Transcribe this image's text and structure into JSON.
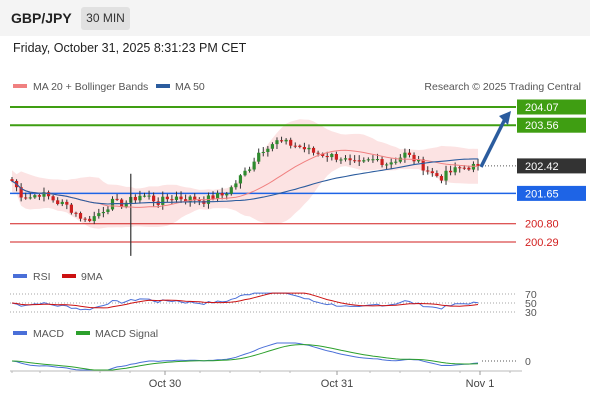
{
  "header": {
    "symbol": "GBP/JPY",
    "timeframe": "30 MIN",
    "timestamp": "Friday, October 31, 2025 8:31:23 PM CET"
  },
  "legend": {
    "ma20": "MA 20 + Bollinger Bands",
    "ma50": "MA 50",
    "credit": "Research © 2025 Trading Central",
    "ma20_color": "#f08080",
    "ma50_color": "#2b5c9e"
  },
  "price_labels": [
    {
      "text": "204.07",
      "value": 204.07,
      "kind": "green"
    },
    {
      "text": "203.56",
      "value": 203.56,
      "kind": "green"
    },
    {
      "text": "202.42",
      "value": 202.42,
      "kind": "dark"
    },
    {
      "text": "201.65",
      "value": 201.65,
      "kind": "blue"
    },
    {
      "text": "200.80",
      "value": 200.8,
      "kind": "red"
    },
    {
      "text": "200.29",
      "value": 200.29,
      "kind": "red"
    }
  ],
  "rsi_panel": {
    "label": "RSI",
    "ma_label": "9MA",
    "levels": [
      "70",
      "50",
      "30"
    ],
    "rsi_color": "#4a6fd8",
    "ma_color": "#cc1111"
  },
  "macd_panel": {
    "label": "MACD",
    "signal_label": "MACD Signal",
    "zero": "0",
    "macd_color": "#4a6fd8",
    "signal_color": "#2ca02c"
  },
  "x_axis": [
    "Oct 30",
    "Oct 31",
    "Nov 1"
  ],
  "colors": {
    "green_level": "#3f9e12",
    "blue_level": "#1e64e6",
    "red_level": "#d21e1e",
    "current": "#333333",
    "arrow": "#2b5c9e"
  },
  "chart_data": {
    "type": "candlestick",
    "instrument": "GBP/JPY",
    "timeframe": "30 MIN",
    "price_axis_labels": [
      204.07,
      203.56,
      202.42,
      201.65,
      200.8,
      200.29
    ],
    "x_tick_labels": [
      "Oct 30",
      "Oct 31",
      "Nov 1"
    ],
    "current_price": 202.42,
    "resistance_levels": [
      203.56,
      204.07
    ],
    "pivot_level": 201.65,
    "support_levels": [
      200.8,
      200.29
    ],
    "projection": {
      "from": 202.42,
      "to": 204.07
    },
    "close_path": [
      202.0,
      201.62,
      201.55,
      201.65,
      201.55,
      201.4,
      201.3,
      201.1,
      200.9,
      201.0,
      201.2,
      201.4,
      201.35,
      201.45,
      201.6,
      201.55,
      201.4,
      201.5,
      201.55,
      201.5,
      201.5,
      201.45,
      201.55,
      201.6,
      201.8,
      202.1,
      202.4,
      202.8,
      203.0,
      203.1,
      203.05,
      203.0,
      202.9,
      202.8,
      202.75,
      202.7,
      202.65,
      202.5,
      202.45,
      202.55,
      202.6,
      202.5,
      202.6,
      202.75,
      202.6,
      202.4,
      202.2,
      202.1,
      202.25,
      202.35,
      202.4,
      202.42
    ],
    "indicators": {
      "rsi_levels": [
        70,
        50,
        30
      ],
      "macd_zero": 0
    }
  }
}
